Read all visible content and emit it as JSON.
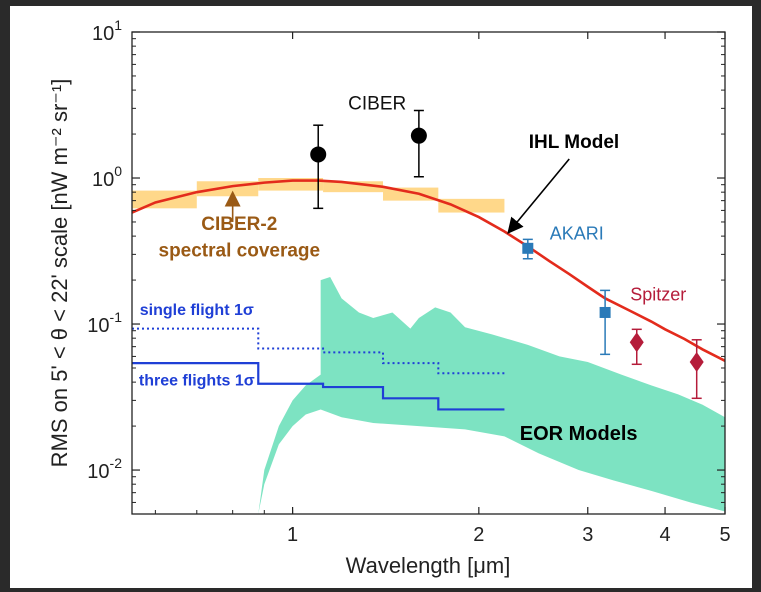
{
  "chart_data": {
    "type": "scatter",
    "xlabel": "Wavelength [μm]",
    "ylabel": "RMS on 5' < θ < 22' scale [nW m⁻² sr⁻¹]",
    "xscale": "log",
    "yscale": "log",
    "xlim": [
      0.55,
      5.0
    ],
    "ylim": [
      0.005,
      10
    ],
    "x_ticks": [
      1,
      2,
      3,
      4,
      5
    ],
    "y_ticks": [
      0.01,
      0.1,
      1,
      10
    ],
    "y_tick_labels": [
      {
        "base": "10",
        "exp": "-2"
      },
      {
        "base": "10",
        "exp": "-1"
      },
      {
        "base": "10",
        "exp": "0"
      },
      {
        "base": "10",
        "exp": "1"
      }
    ],
    "grid": false,
    "series": [
      {
        "name": "CIBER",
        "style": "points-errorbars",
        "color": "#000000",
        "marker": "circle",
        "points": [
          {
            "x": 1.1,
            "y": 1.45,
            "ylo": 0.62,
            "yhi": 2.3
          },
          {
            "x": 1.6,
            "y": 1.95,
            "ylo": 1.02,
            "yhi": 2.9
          }
        ]
      },
      {
        "name": "AKARI",
        "style": "points-errorbars",
        "color": "#2a7ab8",
        "marker": "square",
        "points": [
          {
            "x": 2.4,
            "y": 0.33,
            "ylo": 0.28,
            "yhi": 0.38
          },
          {
            "x": 3.2,
            "y": 0.12,
            "ylo": 0.062,
            "yhi": 0.17
          }
        ]
      },
      {
        "name": "Spitzer",
        "style": "points-errorbars",
        "color": "#b51c3a",
        "marker": "diamond",
        "points": [
          {
            "x": 3.6,
            "y": 0.075,
            "ylo": 0.053,
            "yhi": 0.092
          },
          {
            "x": 4.5,
            "y": 0.055,
            "ylo": 0.031,
            "yhi": 0.078
          }
        ]
      },
      {
        "name": "IHL Model",
        "style": "line",
        "color": "#e32b1c",
        "x": [
          0.55,
          0.6,
          0.7,
          0.8,
          0.9,
          1.0,
          1.1,
          1.2,
          1.4,
          1.6,
          1.8,
          2.0,
          2.2,
          2.4,
          2.6,
          2.8,
          3.0,
          3.2,
          3.5,
          3.8,
          4.0,
          4.3,
          4.6,
          5.0
        ],
        "y": [
          0.58,
          0.68,
          0.8,
          0.88,
          0.93,
          0.96,
          0.96,
          0.94,
          0.87,
          0.78,
          0.66,
          0.54,
          0.43,
          0.34,
          0.27,
          0.22,
          0.18,
          0.15,
          0.124,
          0.104,
          0.092,
          0.079,
          0.067,
          0.056
        ]
      },
      {
        "name": "CIBER-2 spectral coverage",
        "style": "band-steps",
        "color": "#ffd88a",
        "steps": [
          {
            "x0": 0.55,
            "x1": 0.7,
            "ylo": 0.62,
            "yhi": 0.82
          },
          {
            "x0": 0.7,
            "x1": 0.88,
            "ylo": 0.75,
            "yhi": 0.95
          },
          {
            "x0": 0.88,
            "x1": 1.12,
            "ylo": 0.82,
            "yhi": 1.0
          },
          {
            "x0": 1.12,
            "x1": 1.4,
            "ylo": 0.8,
            "yhi": 0.95
          },
          {
            "x0": 1.4,
            "x1": 1.72,
            "ylo": 0.7,
            "yhi": 0.86
          },
          {
            "x0": 1.72,
            "x1": 2.2,
            "ylo": 0.58,
            "yhi": 0.72
          }
        ]
      },
      {
        "name": "single flight 1σ",
        "style": "dotted-steps",
        "color": "#1f3fd6",
        "steps": [
          {
            "x0": 0.55,
            "x1": 0.88,
            "y": 0.093
          },
          {
            "x0": 0.88,
            "x1": 1.12,
            "y": 0.068
          },
          {
            "x0": 1.12,
            "x1": 1.4,
            "y": 0.064
          },
          {
            "x0": 1.4,
            "x1": 1.72,
            "y": 0.054
          },
          {
            "x0": 1.72,
            "x1": 2.2,
            "y": 0.046
          }
        ]
      },
      {
        "name": "three flights 1σ",
        "style": "solid-steps",
        "color": "#1f3fd6",
        "steps": [
          {
            "x0": 0.55,
            "x1": 0.88,
            "y": 0.054
          },
          {
            "x0": 0.88,
            "x1": 1.12,
            "y": 0.039
          },
          {
            "x0": 1.12,
            "x1": 1.4,
            "y": 0.037
          },
          {
            "x0": 1.4,
            "x1": 1.72,
            "y": 0.031
          },
          {
            "x0": 1.72,
            "x1": 2.2,
            "y": 0.026
          }
        ]
      },
      {
        "name": "EOR Models",
        "style": "filled-region",
        "color": "#7de3c2",
        "x_upper": [
          1.11,
          1.15,
          1.2,
          1.28,
          1.35,
          1.45,
          1.55,
          1.6,
          1.7,
          1.8,
          1.9,
          2.1,
          2.4,
          2.7,
          3.0,
          3.4,
          3.8,
          4.2,
          4.6,
          5.0
        ],
        "y_upper": [
          0.2,
          0.21,
          0.15,
          0.12,
          0.11,
          0.12,
          0.093,
          0.11,
          0.13,
          0.12,
          0.095,
          0.085,
          0.072,
          0.06,
          0.055,
          0.045,
          0.038,
          0.033,
          0.028,
          0.023
        ],
        "x_lower": [
          0.88,
          0.9,
          0.95,
          1.0,
          1.05,
          1.11,
          1.2,
          1.35,
          1.6,
          1.9,
          2.2,
          2.5,
          2.9,
          3.3,
          3.8,
          4.4,
          5.0
        ],
        "y_lower": [
          0.005,
          0.008,
          0.015,
          0.02,
          0.024,
          0.026,
          0.023,
          0.021,
          0.02,
          0.019,
          0.017,
          0.013,
          0.01,
          0.0085,
          0.0072,
          0.006,
          0.0052
        ],
        "x_left": [
          0.88,
          0.9,
          0.95,
          1.0,
          1.05,
          1.11
        ],
        "y_left": [
          0.005,
          0.01,
          0.02,
          0.03,
          0.038,
          0.045
        ]
      }
    ],
    "annotations": {
      "ciber": {
        "text": "CIBER",
        "color": "#111111",
        "x": 1.37,
        "y": 2.95
      },
      "ihl_model": {
        "text": "IHL Model",
        "color": "#000000",
        "x": 2.85,
        "y": 1.6
      },
      "akari": {
        "text": "AKARI",
        "color": "#2a7ab8",
        "x": 2.88,
        "y": 0.38
      },
      "spitzer": {
        "text": "Spitzer",
        "color": "#b51c3a",
        "x": 3.9,
        "y": 0.145
      },
      "ciber2_line1": {
        "text": "CIBER-2",
        "color": "#9a5a15",
        "x": 0.82,
        "y": 0.44
      },
      "ciber2_line2": {
        "text": "spectral coverage",
        "color": "#9a5a15",
        "x": 0.82,
        "y": 0.29
      },
      "single_flight": {
        "text": "single flight 1σ",
        "color": "#1f3fd6",
        "x": 0.7,
        "y": 0.115
      },
      "three_flights": {
        "text": "three flights 1σ",
        "color": "#1f3fd6",
        "x": 0.7,
        "y": 0.038
      },
      "eor_models": {
        "text": "EOR Models",
        "color": "#000000",
        "x": 2.9,
        "y": 0.016
      }
    }
  }
}
